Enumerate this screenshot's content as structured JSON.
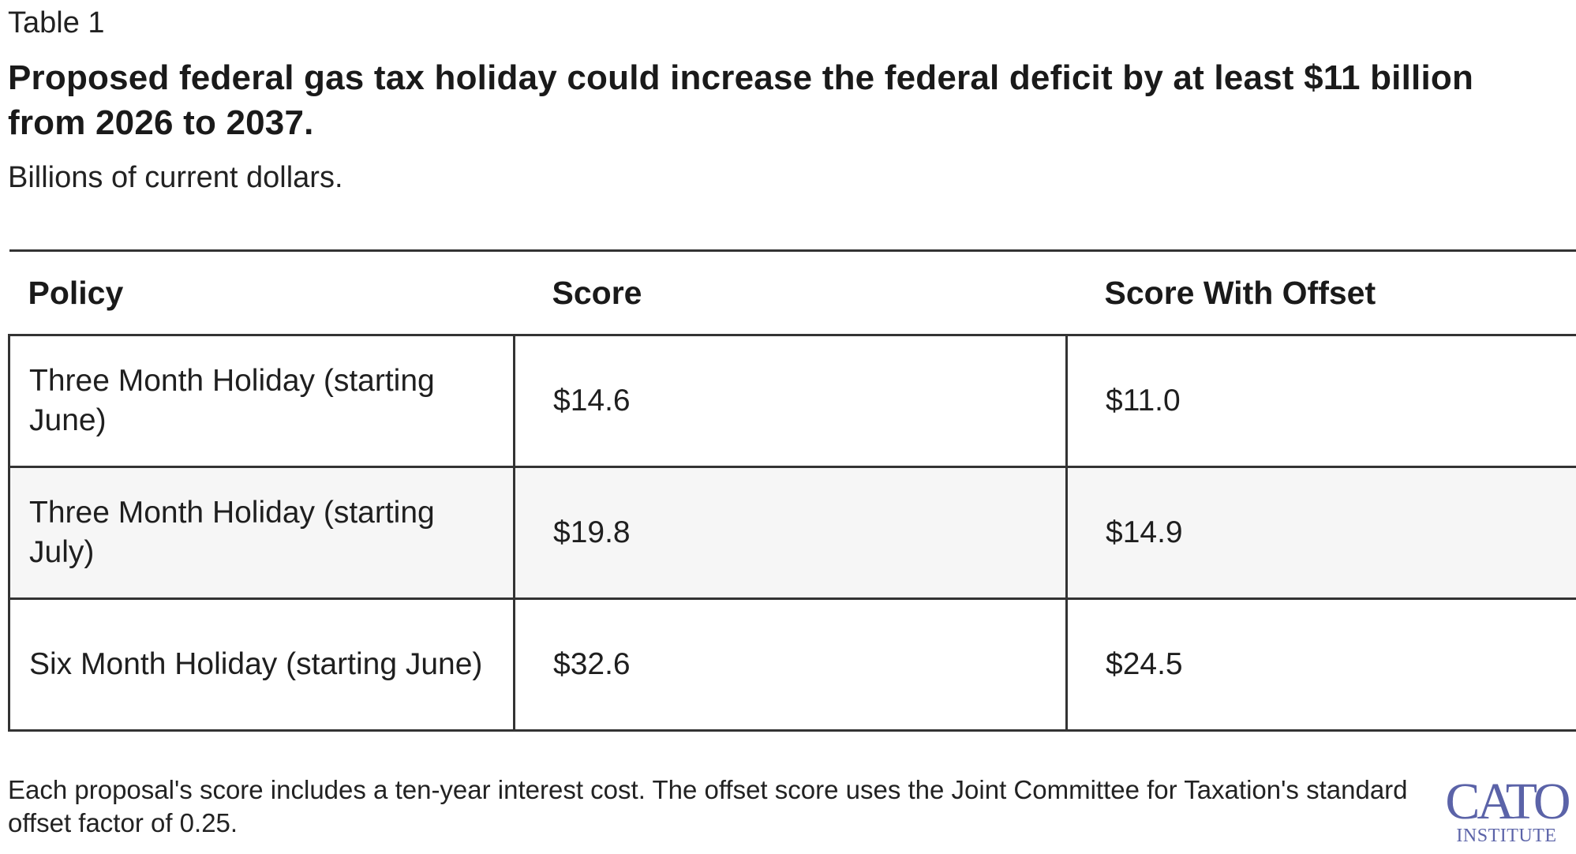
{
  "header": {
    "table_label": "Table 1",
    "title": "Proposed federal gas tax holiday could increase the federal deficit by at least $11 billion from 2026 to 2037.",
    "subtitle": "Billions of current dollars."
  },
  "table": {
    "columns": [
      "Policy",
      "Score",
      "Score With Offset"
    ],
    "rows": [
      {
        "policy": "Three Month Holiday (starting June)",
        "score": "$14.6",
        "score_with_offset": "$11.0"
      },
      {
        "policy": "Three Month Holiday (starting July)",
        "score": "$19.8",
        "score_with_offset": "$14.9"
      },
      {
        "policy": "Six Month Holiday (starting June)",
        "score": "$32.6",
        "score_with_offset": "$24.5"
      }
    ]
  },
  "footer": {
    "note": "Each proposal's score includes a ten-year interest cost. The offset score uses the Joint Committee for Taxation's standard offset factor of 0.25.",
    "logo_main": "CATO",
    "logo_sub": "INSTITUTE"
  },
  "colors": {
    "logo": "#5b63a8",
    "row_alt_background": "#f6f6f6",
    "border": "#333333"
  }
}
